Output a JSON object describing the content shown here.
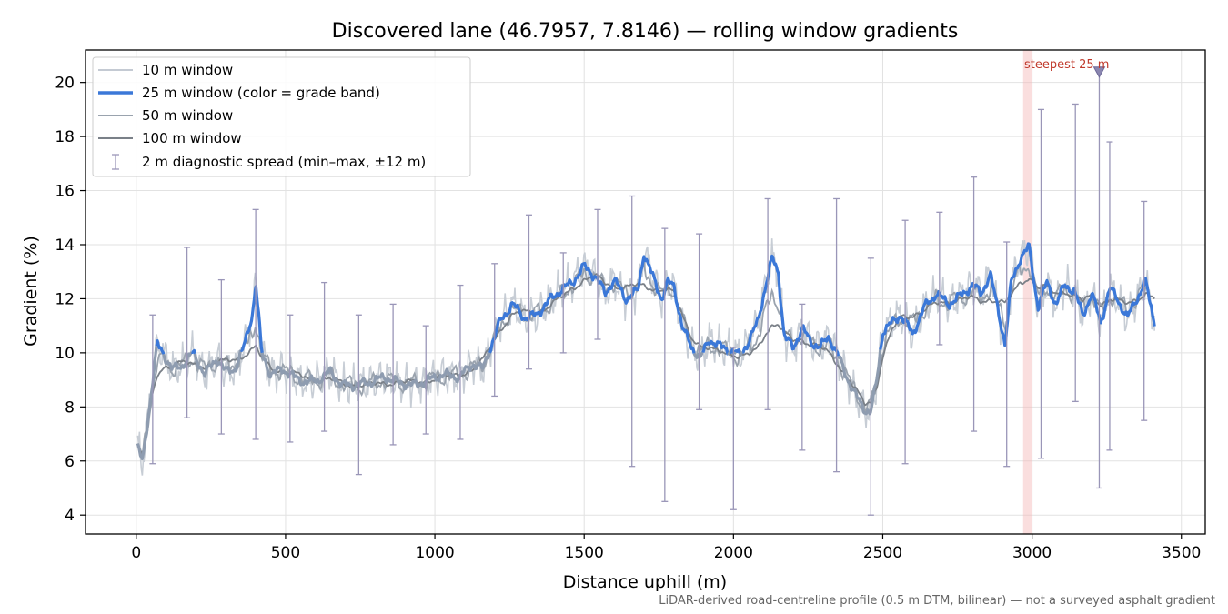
{
  "chart_data": {
    "type": "line",
    "title": "Discovered lane (46.7957, 7.8146) — rolling window gradients",
    "xlabel": "Distance uphill (m)",
    "ylabel": "Gradient (%)",
    "xlim": [
      -170,
      3580
    ],
    "ylim": [
      3.3,
      21.2
    ],
    "xticks": [
      0,
      500,
      1000,
      1500,
      2000,
      2500,
      3000,
      3500
    ],
    "yticks": [
      4,
      6,
      8,
      10,
      12,
      14,
      16,
      18,
      20
    ],
    "grid": true,
    "legend_position": "top-left",
    "footnote": "LiDAR-derived road-centreline profile (0.5 m DTM, bilinear) — not a surveyed asphalt gradient",
    "highlight": {
      "x_start": 2970,
      "x_end": 3000,
      "label": "steepest 25 m",
      "marker": {
        "x": 3225,
        "y": 20.4
      }
    },
    "legend": [
      {
        "label": "10 m window",
        "color": "#c4cad3"
      },
      {
        "label": "25 m window (color = grade band)",
        "color": "#3b78d8"
      },
      {
        "label": "50 m window",
        "color": "#9aa3ae"
      },
      {
        "label": "100 m window",
        "color": "#7a8088"
      },
      {
        "label": "2 m diagnostic spread (min–max, ±12 m)",
        "color": "#9a96b8"
      }
    ],
    "series_points": {
      "x": [
        5,
        20,
        35,
        50,
        70,
        90,
        120,
        150,
        190,
        230,
        270,
        300,
        330,
        360,
        390,
        400,
        420,
        450,
        490,
        530,
        570,
        610,
        650,
        690,
        730,
        780,
        830,
        880,
        930,
        980,
        1030,
        1080,
        1130,
        1160,
        1190,
        1220,
        1260,
        1300,
        1340,
        1380,
        1420,
        1460,
        1500,
        1540,
        1570,
        1600,
        1640,
        1680,
        1700,
        1730,
        1760,
        1780,
        1800,
        1830,
        1860,
        1890,
        1920,
        1960,
        1990,
        2020,
        2050,
        2080,
        2110,
        2130,
        2150,
        2170,
        2200,
        2230,
        2260,
        2290,
        2320,
        2350,
        2380,
        2410,
        2440,
        2460,
        2480,
        2500,
        2530,
        2560,
        2600,
        2640,
        2680,
        2720,
        2760,
        2800,
        2830,
        2860,
        2890,
        2910,
        2930,
        2960,
        2990,
        3020,
        3050,
        3080,
        3110,
        3140,
        3170,
        3200,
        3230,
        3260,
        3290,
        3320,
        3350,
        3380,
        3410
      ],
      "w25": [
        6.6,
        5.9,
        7.2,
        8.5,
        10.3,
        10.0,
        9.4,
        9.5,
        10.0,
        9.2,
        9.8,
        9.3,
        9.4,
        10.2,
        11.5,
        12.6,
        10.0,
        9.2,
        9.4,
        9.1,
        8.9,
        9.0,
        9.3,
        8.8,
        8.8,
        8.9,
        9.1,
        8.9,
        8.8,
        9.0,
        9.2,
        9.1,
        9.6,
        9.4,
        10.3,
        11.2,
        11.8,
        11.3,
        11.4,
        11.9,
        12.3,
        12.6,
        13.2,
        12.8,
        12.2,
        12.7,
        12.0,
        12.3,
        13.7,
        12.8,
        12.0,
        12.6,
        12.5,
        10.9,
        10.2,
        9.8,
        10.5,
        10.2,
        10.1,
        9.9,
        10.4,
        11.1,
        12.6,
        13.5,
        13.0,
        10.6,
        10.2,
        10.9,
        10.4,
        10.2,
        10.6,
        9.9,
        9.1,
        8.4,
        7.9,
        7.8,
        9.0,
        10.8,
        11.1,
        11.4,
        10.7,
        11.7,
        12.2,
        11.8,
        12.1,
        12.5,
        12.2,
        12.9,
        11.4,
        10.3,
        12.6,
        13.5,
        13.9,
        11.7,
        12.6,
        11.8,
        12.5,
        12.3,
        11.4,
        12.2,
        11.1,
        12.4,
        11.9,
        11.3,
        12.0,
        12.6,
        11.1
      ],
      "w100": [
        6.5,
        6.2,
        7.0,
        8.2,
        9.2,
        9.5,
        9.5,
        9.6,
        9.6,
        9.5,
        9.6,
        9.7,
        9.8,
        9.9,
        10.1,
        10.2,
        9.8,
        9.5,
        9.3,
        9.2,
        9.1,
        9.0,
        9.0,
        8.9,
        8.8,
        8.8,
        8.9,
        8.9,
        8.9,
        9.0,
        9.1,
        9.2,
        9.4,
        9.7,
        10.3,
        10.9,
        11.4,
        11.5,
        11.5,
        11.7,
        12.0,
        12.4,
        12.7,
        12.8,
        12.6,
        12.5,
        12.4,
        12.5,
        12.5,
        12.4,
        12.3,
        12.3,
        12.2,
        11.4,
        10.6,
        10.2,
        10.1,
        10.1,
        10.0,
        9.8,
        9.9,
        10.2,
        10.8,
        11.0,
        11.0,
        10.7,
        10.5,
        10.5,
        10.3,
        10.2,
        10.0,
        9.6,
        9.1,
        8.6,
        8.1,
        8.2,
        8.8,
        9.9,
        10.8,
        11.3,
        11.4,
        11.6,
        11.8,
        11.9,
        12.0,
        12.0,
        11.9,
        12.0,
        11.9,
        11.8,
        12.1,
        12.6,
        12.8,
        12.4,
        12.4,
        12.2,
        12.3,
        12.1,
        11.9,
        12.1,
        11.8,
        12.0,
        11.9,
        11.8,
        12.0,
        12.2,
        12.0
      ]
    },
    "diagnostic_spread": [
      {
        "x": 55,
        "min": 5.9,
        "max": 11.4
      },
      {
        "x": 170,
        "min": 7.6,
        "max": 13.9
      },
      {
        "x": 285,
        "min": 7.0,
        "max": 12.7
      },
      {
        "x": 400,
        "min": 6.8,
        "max": 15.3
      },
      {
        "x": 515,
        "min": 6.7,
        "max": 11.4
      },
      {
        "x": 630,
        "min": 7.1,
        "max": 12.6
      },
      {
        "x": 745,
        "min": 5.5,
        "max": 11.4
      },
      {
        "x": 860,
        "min": 6.6,
        "max": 11.8
      },
      {
        "x": 970,
        "min": 7.0,
        "max": 11.0
      },
      {
        "x": 1085,
        "min": 6.8,
        "max": 12.5
      },
      {
        "x": 1200,
        "min": 8.4,
        "max": 13.3
      },
      {
        "x": 1315,
        "min": 9.4,
        "max": 15.1
      },
      {
        "x": 1430,
        "min": 10.0,
        "max": 13.7
      },
      {
        "x": 1545,
        "min": 10.5,
        "max": 15.3
      },
      {
        "x": 1660,
        "min": 5.8,
        "max": 15.8
      },
      {
        "x": 1770,
        "min": 4.5,
        "max": 14.6
      },
      {
        "x": 1885,
        "min": 7.9,
        "max": 14.4
      },
      {
        "x": 2000,
        "min": 4.2,
        "max": 10.2
      },
      {
        "x": 2115,
        "min": 7.9,
        "max": 15.7
      },
      {
        "x": 2230,
        "min": 6.4,
        "max": 11.8
      },
      {
        "x": 2345,
        "min": 5.6,
        "max": 15.7
      },
      {
        "x": 2460,
        "min": 4.0,
        "max": 13.5
      },
      {
        "x": 2575,
        "min": 5.9,
        "max": 14.9
      },
      {
        "x": 2690,
        "min": 10.3,
        "max": 15.2
      },
      {
        "x": 2805,
        "min": 7.1,
        "max": 16.5
      },
      {
        "x": 2915,
        "min": 5.8,
        "max": 14.1
      },
      {
        "x": 3030,
        "min": 6.1,
        "max": 19.0
      },
      {
        "x": 3145,
        "min": 8.2,
        "max": 19.2
      },
      {
        "x": 3225,
        "min": 5.0,
        "max": 20.4
      },
      {
        "x": 3260,
        "min": 6.4,
        "max": 17.8
      },
      {
        "x": 3375,
        "min": 7.5,
        "max": 15.6
      }
    ]
  }
}
